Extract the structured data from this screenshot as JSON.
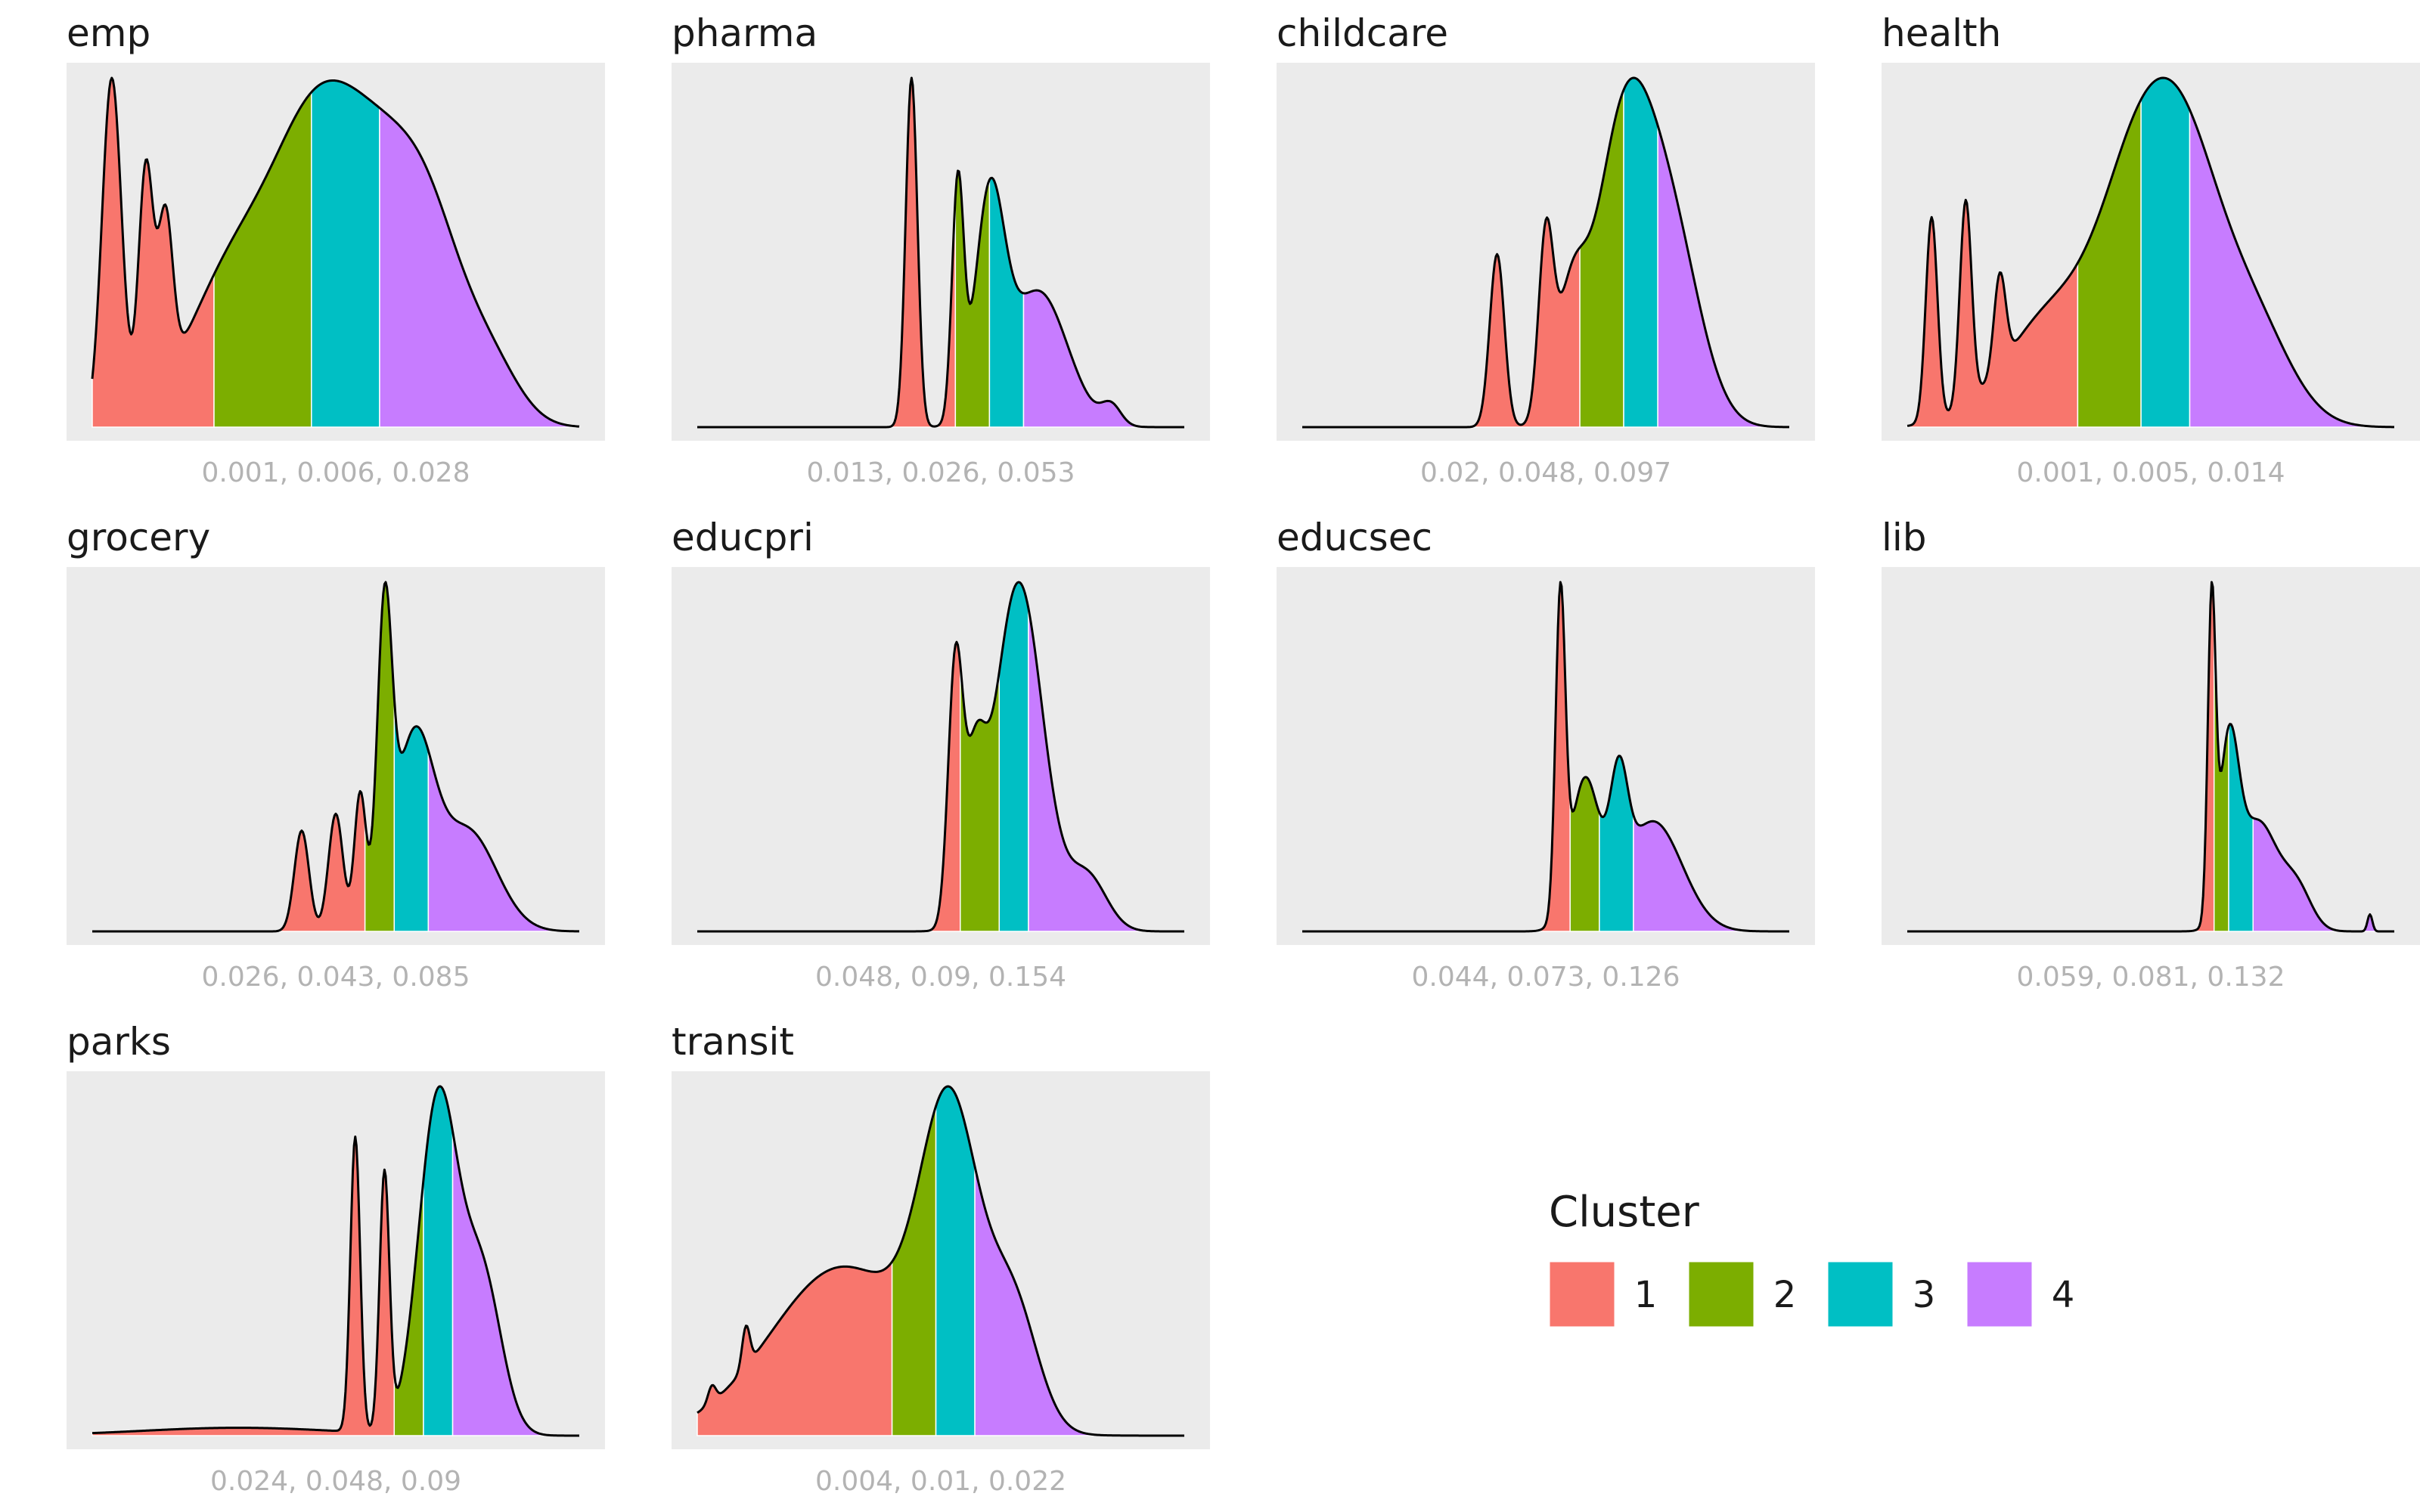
{
  "chart_data": {
    "type": "area",
    "legend": {
      "title": "Cluster",
      "entries": [
        {
          "label": "1",
          "color": "#F8766D"
        },
        {
          "label": "2",
          "color": "#7CAE00"
        },
        {
          "label": "3",
          "color": "#00BFC4"
        },
        {
          "label": "4",
          "color": "#C77CFF"
        }
      ],
      "placement": "bottom-right"
    },
    "xlabel": "",
    "ylabel": "",
    "grid": false,
    "panels": [
      {
        "name": "emp",
        "caption": "0.001, 0.006, 0.028",
        "breaks": [
          0.25,
          0.45,
          0.59
        ],
        "bumps": [
          [
            0.04,
            0.02,
            0.95
          ],
          [
            0.11,
            0.015,
            0.65
          ],
          [
            0.15,
            0.015,
            0.45
          ],
          [
            0.3,
            0.1,
            0.45
          ],
          [
            0.45,
            0.08,
            0.55
          ],
          [
            0.58,
            0.09,
            0.65
          ],
          [
            0.7,
            0.07,
            0.38
          ],
          [
            0.82,
            0.06,
            0.15
          ]
        ]
      },
      {
        "name": "pharma",
        "caption": "0.013, 0.026, 0.053",
        "breaks": [
          0.53,
          0.6,
          0.67
        ],
        "bumps": [
          [
            0.44,
            0.012,
            0.9
          ],
          [
            0.535,
            0.012,
            0.6
          ],
          [
            0.6,
            0.03,
            0.55
          ],
          [
            0.7,
            0.06,
            0.35
          ],
          [
            0.85,
            0.02,
            0.05
          ]
        ]
      },
      {
        "name": "childcare",
        "caption": "0.02, 0.048, 0.097",
        "breaks": [
          0.57,
          0.66,
          0.73
        ],
        "bumps": [
          [
            0.4,
            0.015,
            0.5
          ],
          [
            0.5,
            0.015,
            0.5
          ],
          [
            0.55,
            0.03,
            0.3
          ],
          [
            0.66,
            0.06,
            0.85
          ],
          [
            0.76,
            0.06,
            0.5
          ]
        ]
      },
      {
        "name": "health",
        "caption": "0.001, 0.005, 0.014",
        "breaks": [
          0.35,
          0.48,
          0.58
        ],
        "bumps": [
          [
            0.05,
            0.012,
            0.55
          ],
          [
            0.12,
            0.012,
            0.55
          ],
          [
            0.19,
            0.012,
            0.25
          ],
          [
            0.3,
            0.1,
            0.3
          ],
          [
            0.48,
            0.08,
            0.65
          ],
          [
            0.58,
            0.07,
            0.45
          ],
          [
            0.7,
            0.08,
            0.3
          ]
        ]
      },
      {
        "name": "grocery",
        "caption": "0.026, 0.043, 0.085",
        "breaks": [
          0.56,
          0.62,
          0.69
        ],
        "bumps": [
          [
            0.43,
            0.015,
            0.3
          ],
          [
            0.5,
            0.015,
            0.35
          ],
          [
            0.55,
            0.012,
            0.4
          ],
          [
            0.6,
            0.015,
            0.85
          ],
          [
            0.66,
            0.04,
            0.55
          ],
          [
            0.77,
            0.06,
            0.3
          ]
        ]
      },
      {
        "name": "educpri",
        "caption": "0.048, 0.09, 0.154",
        "breaks": [
          0.54,
          0.62,
          0.68
        ],
        "bumps": [
          [
            0.53,
            0.015,
            0.7
          ],
          [
            0.57,
            0.02,
            0.35
          ],
          [
            0.66,
            0.05,
            0.95
          ],
          [
            0.8,
            0.04,
            0.15
          ]
        ]
      },
      {
        "name": "educsec",
        "caption": "0.044, 0.073, 0.126",
        "breaks": [
          0.55,
          0.61,
          0.68
        ],
        "bumps": [
          [
            0.53,
            0.01,
            0.85
          ],
          [
            0.58,
            0.03,
            0.4
          ],
          [
            0.65,
            0.018,
            0.3
          ],
          [
            0.72,
            0.06,
            0.3
          ]
        ]
      },
      {
        "name": "lib",
        "caption": "0.059, 0.081, 0.132",
        "breaks": [
          0.63,
          0.66,
          0.71
        ],
        "bumps": [
          [
            0.625,
            0.008,
            0.9
          ],
          [
            0.66,
            0.02,
            0.5
          ],
          [
            0.72,
            0.04,
            0.32
          ],
          [
            0.8,
            0.03,
            0.12
          ],
          [
            0.95,
            0.005,
            0.05
          ]
        ]
      },
      {
        "name": "parks",
        "caption": "0.024, 0.048, 0.09",
        "breaks": [
          0.62,
          0.68,
          0.74
        ],
        "bumps": [
          [
            0.54,
            0.01,
            0.75
          ],
          [
            0.6,
            0.01,
            0.65
          ],
          [
            0.71,
            0.04,
            0.85
          ],
          [
            0.8,
            0.04,
            0.4
          ],
          [
            0.3,
            0.2,
            0.02
          ]
        ]
      },
      {
        "name": "transit",
        "caption": "0.004, 0.01, 0.022",
        "breaks": [
          0.4,
          0.49,
          0.57
        ],
        "bumps": [
          [
            0.03,
            0.008,
            0.05
          ],
          [
            0.1,
            0.008,
            0.12
          ],
          [
            0.3,
            0.15,
            0.5
          ],
          [
            0.52,
            0.06,
            0.85
          ],
          [
            0.65,
            0.05,
            0.35
          ]
        ]
      }
    ]
  }
}
